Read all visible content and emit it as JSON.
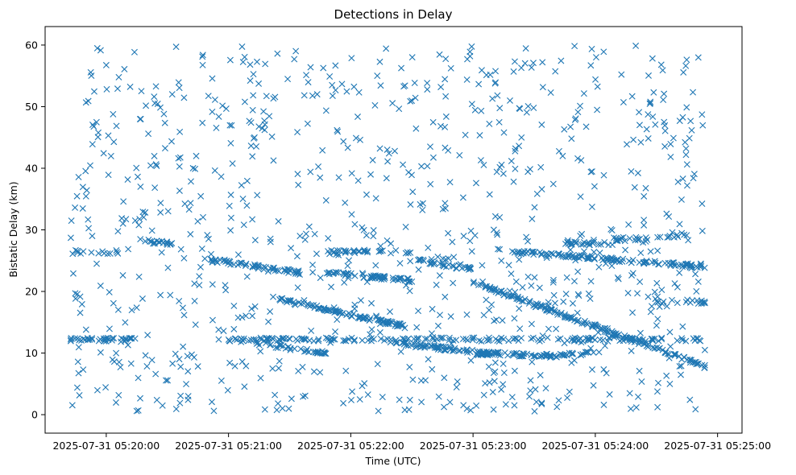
{
  "chart_data": {
    "type": "scatter",
    "title": "Detections in Delay",
    "xlabel": "Time (UTC)",
    "ylabel": "Bistatic Delay (km)",
    "marker": "x",
    "color": "#1f77b4",
    "xlim": [
      -0.5,
      5.2
    ],
    "ylim": [
      -3,
      63
    ],
    "x_unit": "minutes after 2025-07-31 05:20:00",
    "x_ticks": [
      {
        "value": 0,
        "label": "2025-07-31 05:20:00"
      },
      {
        "value": 1,
        "label": "2025-07-31 05:21:00"
      },
      {
        "value": 2,
        "label": "2025-07-31 05:22:00"
      },
      {
        "value": 3,
        "label": "2025-07-31 05:23:00"
      },
      {
        "value": 4,
        "label": "2025-07-31 05:24:00"
      },
      {
        "value": 5,
        "label": "2025-07-31 05:25:00"
      }
    ],
    "y_ticks": [
      {
        "value": 0,
        "label": "0"
      },
      {
        "value": 10,
        "label": "10"
      },
      {
        "value": 20,
        "label": "20"
      },
      {
        "value": 30,
        "label": "30"
      },
      {
        "value": 40,
        "label": "40"
      },
      {
        "value": 50,
        "label": "50"
      },
      {
        "value": 60,
        "label": "60"
      }
    ],
    "series": [
      {
        "name": "Detections",
        "x_range": [
          -0.3,
          4.9
        ],
        "noise_y_range": [
          0.5,
          60
        ],
        "noise_count": 900,
        "tracks": [
          {
            "x": [
              -0.3,
              0.25
            ],
            "y": [
              12.2,
              12.2
            ],
            "n": 40
          },
          {
            "x": [
              1.0,
              4.9
            ],
            "y": [
              12.2,
              12.2
            ],
            "n": 170
          },
          {
            "x": [
              0.3,
              0.55
            ],
            "y": [
              28.2,
              27.8
            ],
            "n": 18
          },
          {
            "x": [
              -0.3,
              0.1
            ],
            "y": [
              26.4,
              26.4
            ],
            "n": 15
          },
          {
            "x": [
              0.8,
              1.6
            ],
            "y": [
              25.2,
              23.0
            ],
            "n": 60
          },
          {
            "x": [
              1.05,
              1.8
            ],
            "y": [
              12.0,
              10.0
            ],
            "n": 40
          },
          {
            "x": [
              1.4,
              2.45
            ],
            "y": [
              18.8,
              14.3
            ],
            "n": 100
          },
          {
            "x": [
              1.8,
              2.5
            ],
            "y": [
              23.0,
              21.8
            ],
            "n": 60
          },
          {
            "x": [
              1.85,
              2.5
            ],
            "y": [
              26.5,
              26.5
            ],
            "n": 30
          },
          {
            "x": [
              2.3,
              3.1
            ],
            "y": [
              11.8,
              10.0
            ],
            "n": 60
          },
          {
            "x": [
              2.55,
              3.0
            ],
            "y": [
              25.0,
              23.6
            ],
            "n": 30
          },
          {
            "x": [
              3.0,
              3.7
            ],
            "y": [
              10.0,
              9.5
            ],
            "n": 70
          },
          {
            "x": [
              3.0,
              4.9
            ],
            "y": [
              21.5,
              7.8
            ],
            "n": 170
          },
          {
            "x": [
              3.3,
              4.9
            ],
            "y": [
              26.5,
              24.0
            ],
            "n": 120
          },
          {
            "x": [
              3.7,
              4.0
            ],
            "y": [
              9.6,
              10.2
            ],
            "n": 20
          },
          {
            "x": [
              3.75,
              4.15
            ],
            "y": [
              27.8,
              27.8
            ],
            "n": 25
          },
          {
            "x": [
              4.15,
              4.45
            ],
            "y": [
              28.5,
              28.5
            ],
            "n": 20
          },
          {
            "x": [
              4.5,
              4.9
            ],
            "y": [
              18.5,
              18.3
            ],
            "n": 18
          },
          {
            "x": [
              4.5,
              4.75
            ],
            "y": [
              29.0,
              29.0
            ],
            "n": 10
          }
        ]
      }
    ]
  }
}
